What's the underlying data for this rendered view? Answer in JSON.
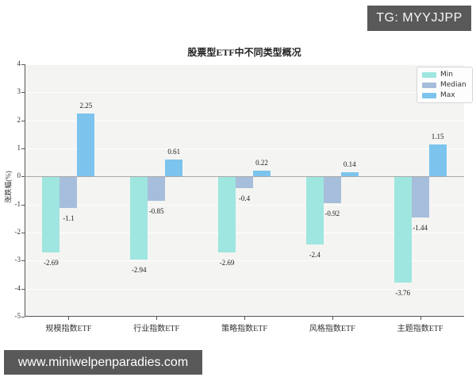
{
  "badges": {
    "tg": "TG: MYYJJPP",
    "watermark": "www.miniwelpenparadies.com",
    "badge_bg": "#595959"
  },
  "chart_data": {
    "type": "bar",
    "title": "股票型ETF中不同类型概况",
    "xlabel": "",
    "ylabel": "涨跌幅(%)",
    "categories": [
      "规模指数ETF",
      "行业指数ETF",
      "策略指数ETF",
      "风格指数ETF",
      "主题指数ETF"
    ],
    "series": [
      {
        "name": "Min",
        "color": "#9fe6e0",
        "values": [
          -2.69,
          -2.94,
          -2.69,
          -2.4,
          -3.76
        ]
      },
      {
        "name": "Median",
        "color": "#a6bedb",
        "values": [
          -1.1,
          -0.85,
          -0.4,
          -0.92,
          -1.44
        ]
      },
      {
        "name": "Max",
        "color": "#7cc4ee",
        "values": [
          2.25,
          0.61,
          0.22,
          0.14,
          1.15
        ]
      }
    ],
    "ylim": [
      -5,
      4
    ],
    "yticks": [
      4,
      3,
      2,
      1,
      0,
      -1,
      -2,
      -3,
      -4,
      -5
    ],
    "grid": true,
    "legend_position": "upper right",
    "plot_bg": "#f4f4f2",
    "zero_line_color": "#a9a9a9"
  }
}
